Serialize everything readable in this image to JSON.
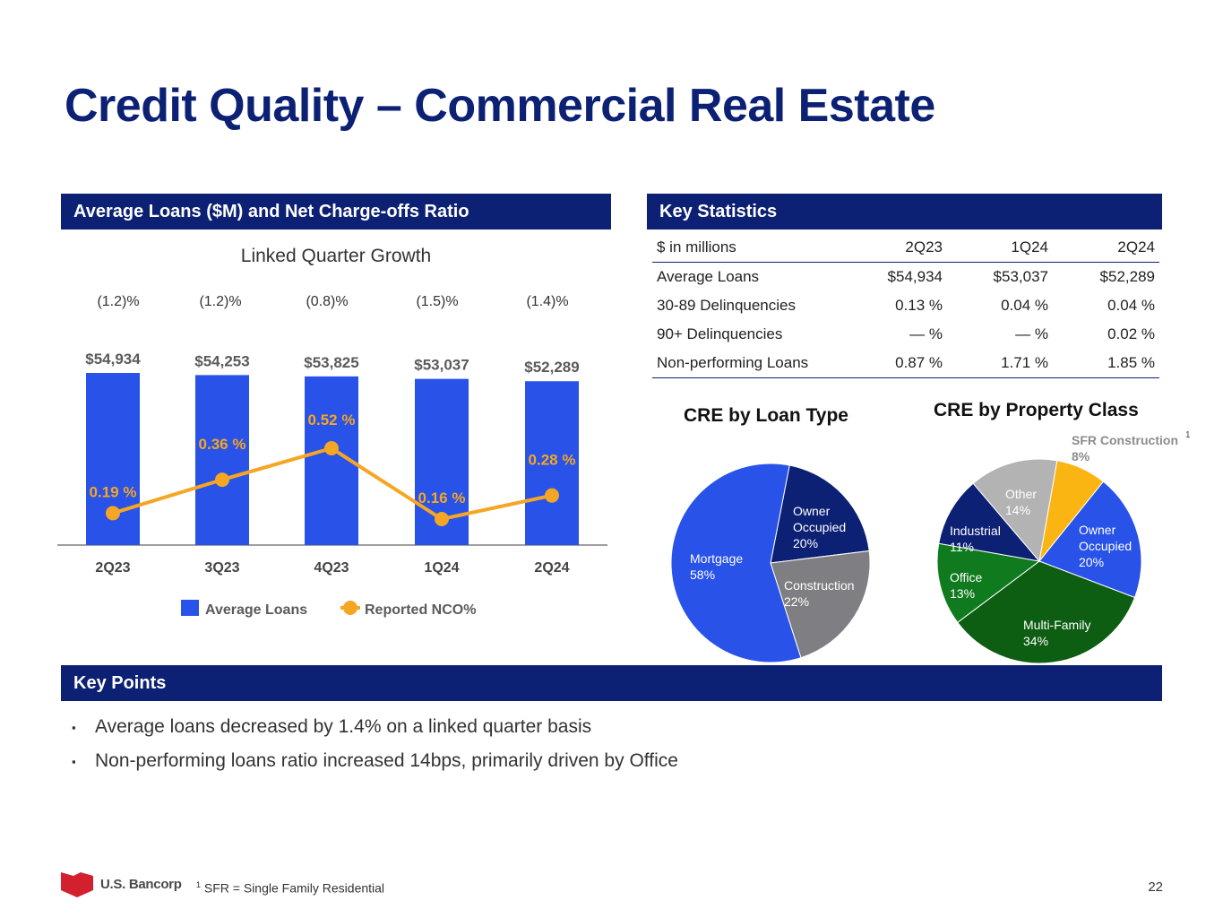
{
  "title": "Credit Quality – Commercial Real Estate",
  "left_panel": {
    "header": "Average Loans ($M) and Net Charge-offs Ratio",
    "subtitle": "Linked Quarter Growth",
    "growth_labels": [
      "(1.2)%",
      "(1.2)%",
      "(0.8)%",
      "(1.5)%",
      "(1.4)%"
    ]
  },
  "chart_data": [
    {
      "type": "bar",
      "categories": [
        "2Q23",
        "3Q23",
        "4Q23",
        "1Q24",
        "2Q24"
      ],
      "series": [
        {
          "name": "Average Loans",
          "values": [
            54934,
            54253,
            53825,
            53037,
            52289
          ],
          "labels": [
            "$54,934",
            "$54,253",
            "$53,825",
            "$53,037",
            "$52,289"
          ],
          "color": "#2852e8"
        },
        {
          "name": "Reported NCO%",
          "type": "line",
          "values": [
            0.19,
            0.36,
            0.52,
            0.16,
            0.28
          ],
          "labels": [
            "0.19 %",
            "0.36 %",
            "0.52 %",
            "0.16 %",
            "0.28 %"
          ],
          "color": "#f5a623"
        }
      ],
      "legend": "bottom"
    },
    {
      "type": "pie",
      "title": "CRE by Loan Type",
      "slices": [
        {
          "name": "Owner Occupied",
          "value": 20,
          "label": "20%",
          "color": "#0c2074"
        },
        {
          "name": "Construction",
          "value": 22,
          "label": "22%",
          "color": "#7f7f83"
        },
        {
          "name": "Mortgage",
          "value": 58,
          "label": "58%",
          "color": "#2852e8"
        }
      ]
    },
    {
      "type": "pie",
      "title": "CRE by Property Class",
      "slices": [
        {
          "name": "SFR Construction",
          "value": 8,
          "label": "8%",
          "color": "#fbb512"
        },
        {
          "name": "Owner Occupied",
          "value": 20,
          "label": "20%",
          "color": "#2852e8"
        },
        {
          "name": "Multi-Family",
          "value": 34,
          "label": "34%",
          "color": "#0d5d12"
        },
        {
          "name": "Office",
          "value": 13,
          "label": "13%",
          "color": "#0f7a1e"
        },
        {
          "name": "Industrial",
          "value": 11,
          "label": "11%",
          "color": "#0c2074"
        },
        {
          "name": "Other",
          "value": 14,
          "label": "14%",
          "color": "#b3b3b3"
        }
      ],
      "footnote_marker": "1"
    }
  ],
  "key_statistics": {
    "header": "Key Statistics",
    "columns": [
      "$ in millions",
      "2Q23",
      "1Q24",
      "2Q24"
    ],
    "rows": [
      [
        "Average Loans",
        "$54,934",
        "$53,037",
        "$52,289"
      ],
      [
        "30-89 Delinquencies",
        "0.13 %",
        "0.04 %",
        "0.04 %"
      ],
      [
        "90+ Delinquencies",
        "— %",
        "— %",
        "0.02 %"
      ],
      [
        "Non-performing Loans",
        "0.87 %",
        "1.71 %",
        "1.85 %"
      ]
    ]
  },
  "key_points": {
    "header": "Key Points",
    "bullets": [
      "Average loans decreased by 1.4%  on a linked quarter basis",
      "Non-performing loans ratio increased 14bps, primarily driven by Office"
    ]
  },
  "footer": {
    "logo_text": "U.S. Bancorp",
    "footnote_marker": "1",
    "footnote": "SFR = Single Family Residential",
    "page_number": "22"
  }
}
